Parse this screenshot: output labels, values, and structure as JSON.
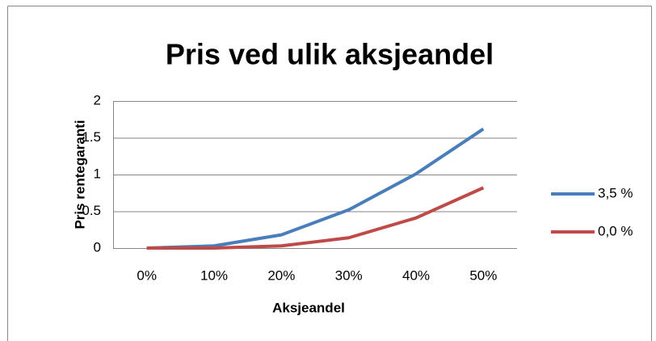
{
  "chart_data": {
    "type": "line",
    "title": "Pris ved ulik aksjeandel",
    "x_label": "Aksjeandel",
    "y_label": "Pris rentegaranti",
    "categories": [
      "0%",
      "10%",
      "20%",
      "30%",
      "40%",
      "50%"
    ],
    "series": [
      {
        "name": "3,5 %",
        "color": "#4a7ebb",
        "values": [
          0,
          0.03,
          0.18,
          0.52,
          1.01,
          1.62
        ]
      },
      {
        "name": "0,0 %",
        "color": "#be4b48",
        "values": [
          0,
          0,
          0.03,
          0.14,
          0.41,
          0.82
        ]
      }
    ],
    "ylim": [
      0,
      2
    ],
    "yticks": [
      0,
      0.5,
      1,
      1.5,
      2
    ],
    "grid": true,
    "legend": "right"
  }
}
